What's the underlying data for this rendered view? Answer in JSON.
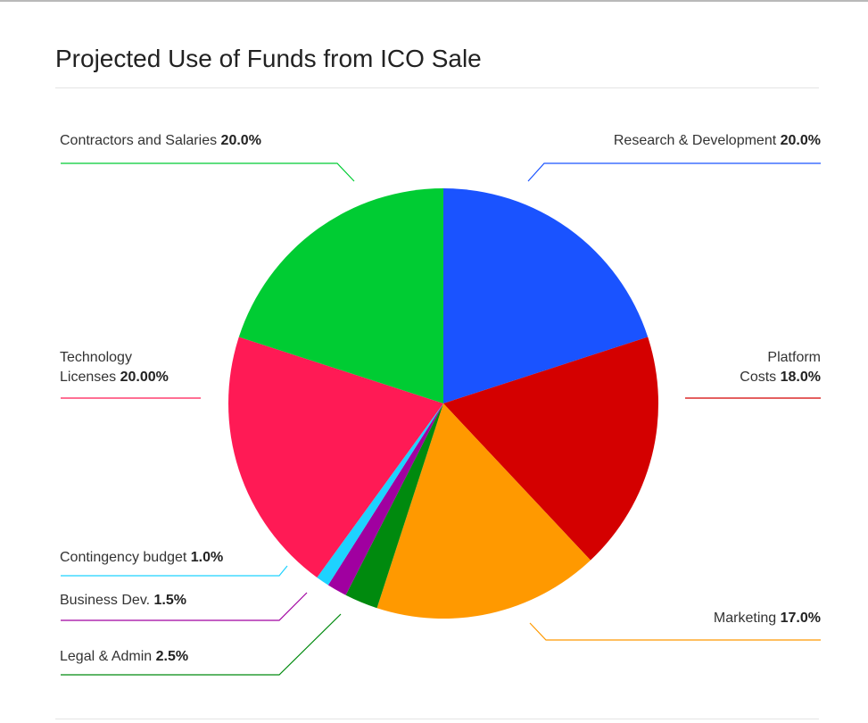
{
  "chart_data": {
    "type": "pie",
    "title": "Projected Use of Funds from ICO Sale",
    "categories": [
      "Research & Development",
      "Platform Costs",
      "Marketing",
      "Legal & Admin",
      "Business Dev.",
      "Contingency budget",
      "Technology Licenses",
      "Contractors and Salaries"
    ],
    "values": [
      20,
      18,
      17,
      2.5,
      1.5,
      1,
      20,
      20
    ],
    "value_labels": [
      "20.0%",
      "18.0%",
      "17.0%",
      "2.5%",
      "1.5%",
      "1.0%",
      "20.00%",
      "20.0%"
    ],
    "colors": [
      "#1a53ff",
      "#d40000",
      "#ff9900",
      "#008a0e",
      "#a000a0",
      "#1ed2ff",
      "#ff1a55",
      "#00cc33"
    ]
  }
}
